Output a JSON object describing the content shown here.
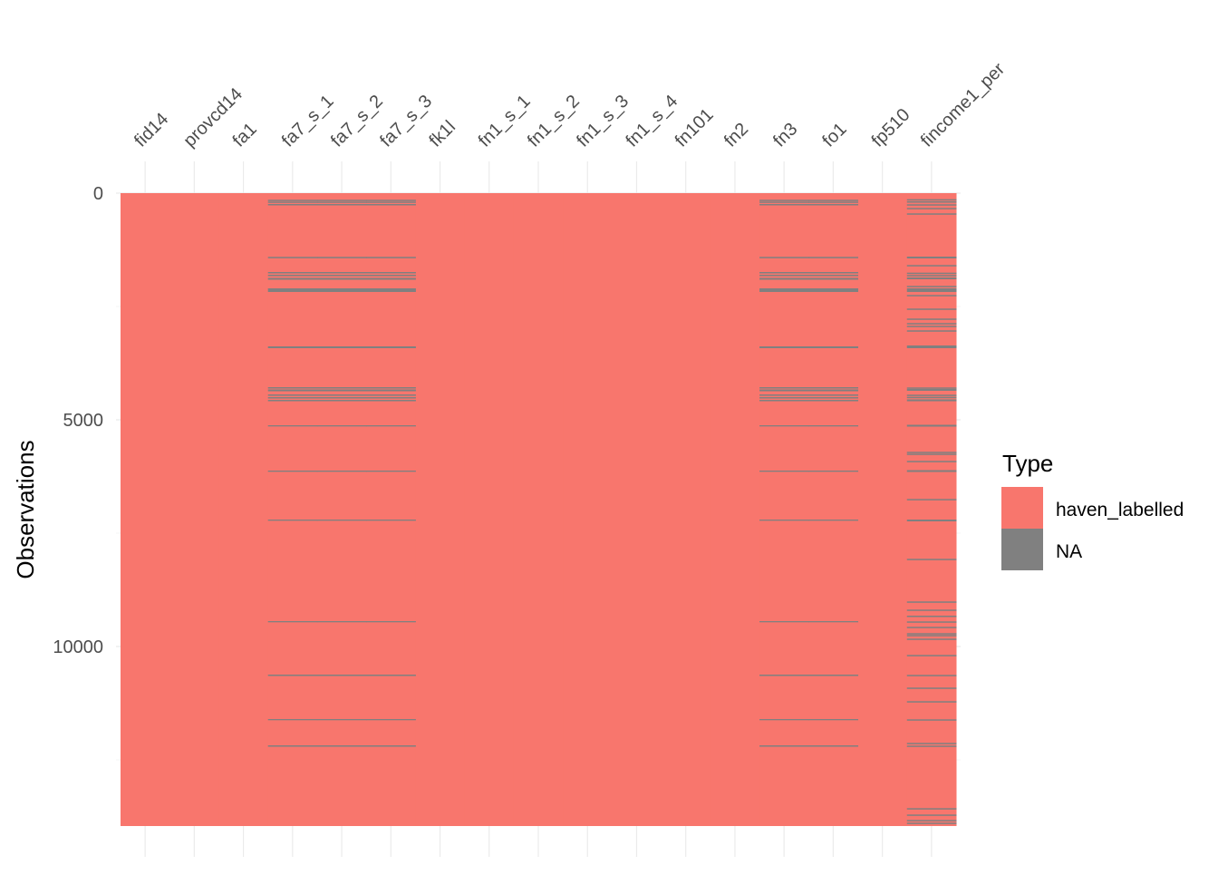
{
  "chart_data": {
    "type": "heatmap",
    "title": "",
    "xlabel": "",
    "ylabel": "Observations",
    "n_observations": 13960,
    "ylim": [
      0,
      13960
    ],
    "y_ticks": [
      0,
      5000,
      10000
    ],
    "y_tick_labels": [
      "0",
      "5000",
      "10000"
    ],
    "columns": [
      "fid14",
      "provcd14",
      "fa1",
      "fa7_s_1",
      "fa7_s_2",
      "fa7_s_3",
      "fk1l",
      "fn1_s_1",
      "fn1_s_2",
      "fn1_s_3",
      "fn1_s_4",
      "fn101",
      "fn2",
      "fn3",
      "fo1",
      "fp510",
      "fincome1_per"
    ],
    "column_type": "haven_labelled",
    "legend": {
      "title": "Type",
      "position": "right",
      "entries": [
        {
          "label": "haven_labelled",
          "color": "#F8766D"
        },
        {
          "label": "NA",
          "color": "#808080"
        }
      ]
    },
    "na_groups": [
      {
        "columns": [
          "fa7_s_1",
          "fa7_s_2",
          "fa7_s_3",
          "fn3",
          "fo1"
        ],
        "na_rows": [
          [
            146,
            30
          ],
          [
            186,
            30
          ],
          [
            240,
            30
          ],
          [
            1406,
            30
          ],
          [
            1740,
            30
          ],
          [
            1800,
            30
          ],
          [
            1870,
            40
          ],
          [
            2100,
            80
          ],
          [
            3380,
            40
          ],
          [
            4280,
            30
          ],
          [
            4330,
            40
          ],
          [
            4440,
            30
          ],
          [
            4500,
            30
          ],
          [
            4560,
            30
          ],
          [
            5120,
            20
          ],
          [
            6120,
            20
          ],
          [
            7200,
            20
          ],
          [
            9440,
            20
          ],
          [
            10620,
            30
          ],
          [
            11600,
            20
          ],
          [
            12180,
            30
          ]
        ]
      },
      {
        "columns": [
          "fincome1_per"
        ],
        "na_rows": [
          [
            134,
            30
          ],
          [
            180,
            30
          ],
          [
            246,
            30
          ],
          [
            326,
            30
          ],
          [
            446,
            30
          ],
          [
            1400,
            40
          ],
          [
            1586,
            30
          ],
          [
            1754,
            30
          ],
          [
            1806,
            30
          ],
          [
            1860,
            40
          ],
          [
            2046,
            30
          ],
          [
            2100,
            80
          ],
          [
            2246,
            30
          ],
          [
            2546,
            30
          ],
          [
            2766,
            30
          ],
          [
            2866,
            30
          ],
          [
            2926,
            30
          ],
          [
            3026,
            30
          ],
          [
            3360,
            60
          ],
          [
            4286,
            30
          ],
          [
            4320,
            40
          ],
          [
            4446,
            30
          ],
          [
            4494,
            30
          ],
          [
            4550,
            40
          ],
          [
            5110,
            40
          ],
          [
            5706,
            30
          ],
          [
            5746,
            30
          ],
          [
            5906,
            30
          ],
          [
            6110,
            40
          ],
          [
            6746,
            30
          ],
          [
            7200,
            40
          ],
          [
            8066,
            30
          ],
          [
            9006,
            30
          ],
          [
            9186,
            30
          ],
          [
            9320,
            30
          ],
          [
            9446,
            30
          ],
          [
            9566,
            30
          ],
          [
            9706,
            30
          ],
          [
            9746,
            30
          ],
          [
            9826,
            30
          ],
          [
            10186,
            30
          ],
          [
            10626,
            30
          ],
          [
            10906,
            30
          ],
          [
            11206,
            30
          ],
          [
            11606,
            30
          ],
          [
            12126,
            30
          ],
          [
            12186,
            30
          ],
          [
            13566,
            30
          ],
          [
            13706,
            30
          ],
          [
            13826,
            30
          ],
          [
            13886,
            30
          ]
        ]
      }
    ],
    "grid": true
  }
}
